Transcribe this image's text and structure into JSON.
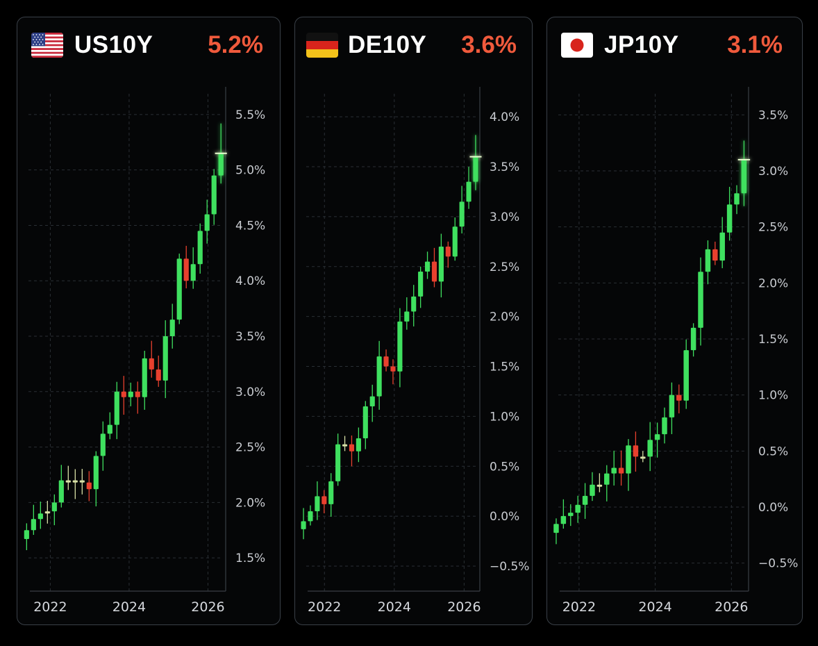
{
  "colors": {
    "up": "#3fe05f",
    "down": "#e8402e",
    "doji": "#d8e0a6",
    "grid": "#2a2f35",
    "axis": "#3a3f45",
    "yield_text": "#f05a3c"
  },
  "chart_data": [
    {
      "type": "candlestick",
      "ticker": "US10Y",
      "flag": "us-flag-icon",
      "current": "5.2%",
      "x_ticks": [
        "2022",
        "2024",
        "2026"
      ],
      "x_tick_values": [
        2022,
        2024,
        2026
      ],
      "xlim": [
        2021.2,
        2026.45
      ],
      "y_ticks": [
        "5.5%",
        "5.0%",
        "4.5%",
        "4.0%",
        "3.5%",
        "3.0%",
        "2.5%",
        "2.0%",
        "1.5%"
      ],
      "y_tick_values": [
        5.5,
        5.0,
        4.5,
        4.0,
        3.5,
        3.0,
        2.5,
        2.0,
        1.5
      ],
      "ylim": [
        1.2,
        5.75
      ],
      "close": [
        1.75,
        1.85,
        1.9,
        1.92,
        2.0,
        2.2,
        2.18,
        2.2,
        2.18,
        2.12,
        2.42,
        2.62,
        2.7,
        3.0,
        2.95,
        3.0,
        2.95,
        3.3,
        3.2,
        3.1,
        3.5,
        3.65,
        4.2,
        4.0,
        4.15,
        4.45,
        4.6,
        4.95,
        5.15
      ],
      "highlight_last": true
    },
    {
      "type": "candlestick",
      "ticker": "DE10Y",
      "flag": "de-flag-icon",
      "current": "3.6%",
      "x_ticks": [
        "2022",
        "2024",
        "2026"
      ],
      "x_tick_values": [
        2022,
        2024,
        2026
      ],
      "xlim": [
        2021.2,
        2026.45
      ],
      "y_ticks": [
        "4.0%",
        "3.5%",
        "3.0%",
        "2.5%",
        "2.0%",
        "1.5%",
        "1.0%",
        "0.5%",
        "0.0%",
        "−0.5%"
      ],
      "y_tick_values": [
        4.0,
        3.5,
        3.0,
        2.5,
        2.0,
        1.5,
        1.0,
        0.5,
        0.0,
        -0.5
      ],
      "ylim": [
        -0.75,
        4.3
      ],
      "close": [
        -0.05,
        0.05,
        0.2,
        0.12,
        0.35,
        0.72,
        0.72,
        0.65,
        0.78,
        1.1,
        1.2,
        1.6,
        1.5,
        1.45,
        1.95,
        2.05,
        2.2,
        2.45,
        2.55,
        2.35,
        2.7,
        2.6,
        2.9,
        3.15,
        3.35,
        3.6
      ],
      "highlight_last": true
    },
    {
      "type": "candlestick",
      "ticker": "JP10Y",
      "flag": "jp-flag-icon",
      "current": "3.1%",
      "x_ticks": [
        "2022",
        "2024",
        "2026"
      ],
      "x_tick_values": [
        2022,
        2024,
        2026
      ],
      "xlim": [
        2021.2,
        2026.45
      ],
      "y_ticks": [
        "3.5%",
        "3.0%",
        "2.5%",
        "2.0%",
        "1.5%",
        "1.0%",
        "0.5%",
        "0.0%",
        "−0.5%"
      ],
      "y_tick_values": [
        3.5,
        3.0,
        2.5,
        2.0,
        1.5,
        1.0,
        0.5,
        0.0,
        -0.5
      ],
      "ylim": [
        -0.75,
        3.75
      ],
      "close": [
        -0.15,
        -0.08,
        -0.05,
        0.02,
        0.1,
        0.2,
        0.2,
        0.3,
        0.35,
        0.3,
        0.55,
        0.45,
        0.45,
        0.6,
        0.65,
        0.8,
        1.0,
        0.95,
        1.4,
        1.6,
        2.1,
        2.3,
        2.2,
        2.45,
        2.7,
        2.8,
        3.1
      ],
      "highlight_last": true
    }
  ]
}
